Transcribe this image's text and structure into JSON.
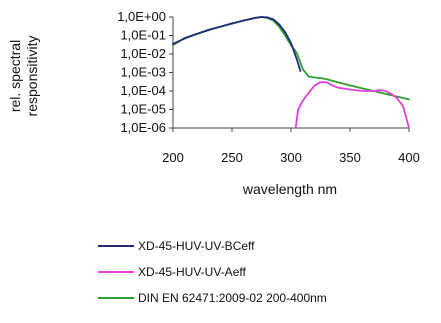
{
  "chart_data": {
    "type": "line",
    "xlabel": "wavelength nm",
    "ylabel_lines": [
      "rel. spectral",
      "responsitivity"
    ],
    "y_scale": "log",
    "xlim": [
      200,
      400
    ],
    "ylim": [
      1e-06,
      1
    ],
    "x_ticks": [
      200,
      250,
      300,
      350,
      400
    ],
    "x_tick_labels": [
      "200",
      "250",
      "300",
      "350",
      "400"
    ],
    "y_ticks": [
      1,
      0.1,
      0.01,
      0.001,
      0.0001,
      1e-05,
      1e-06
    ],
    "y_tick_labels": [
      "1,0E+00",
      "1,0E-01",
      "1,0E-02",
      "1,0E-03",
      "1,0E-04",
      "1,0E-05",
      "1,0E-06"
    ],
    "grid": false,
    "legend_position": "bottom",
    "series": [
      {
        "name": "XD-45-HUV-UV-BCeff",
        "color": "#1f2a7a",
        "x": [
          200,
          210,
          220,
          230,
          240,
          250,
          260,
          270,
          275,
          280,
          285,
          290,
          295,
          300,
          305,
          308
        ],
        "y": [
          0.035,
          0.07,
          0.12,
          0.2,
          0.3,
          0.45,
          0.65,
          0.9,
          1.0,
          0.95,
          0.75,
          0.4,
          0.15,
          0.04,
          0.005,
          0.0012
        ]
      },
      {
        "name": "XD-45-HUV-UV-Aeff",
        "color": "#e040e0",
        "x": [
          304,
          306,
          310,
          315,
          320,
          325,
          330,
          335,
          340,
          350,
          360,
          370,
          375,
          380,
          385,
          390,
          395,
          400
        ],
        "y": [
          1e-06,
          1e-05,
          3e-05,
          8e-05,
          0.0002,
          0.0003,
          0.0003,
          0.0002,
          0.00015,
          0.00012,
          0.0001,
          0.0001,
          0.00011,
          0.0001,
          7e-05,
          4e-05,
          1.5e-05,
          1e-06
        ]
      },
      {
        "name": "DIN EN 62471:2009-02 200-400nm",
        "color": "#2f9e2f",
        "x": [
          200,
          210,
          220,
          230,
          240,
          250,
          260,
          270,
          275,
          280,
          285,
          290,
          295,
          300,
          305,
          310,
          315,
          320,
          325,
          330,
          340,
          350,
          360,
          370,
          380,
          390,
          400
        ],
        "y": [
          0.03,
          0.075,
          0.12,
          0.19,
          0.3,
          0.43,
          0.65,
          0.9,
          1.0,
          0.88,
          0.64,
          0.3,
          0.1,
          0.03,
          0.011,
          0.0015,
          0.0006,
          0.00054,
          0.0005,
          0.00044,
          0.00029,
          0.0002,
          0.00014,
          0.0001,
          7e-05,
          5e-05,
          3.5e-05
        ]
      }
    ]
  }
}
